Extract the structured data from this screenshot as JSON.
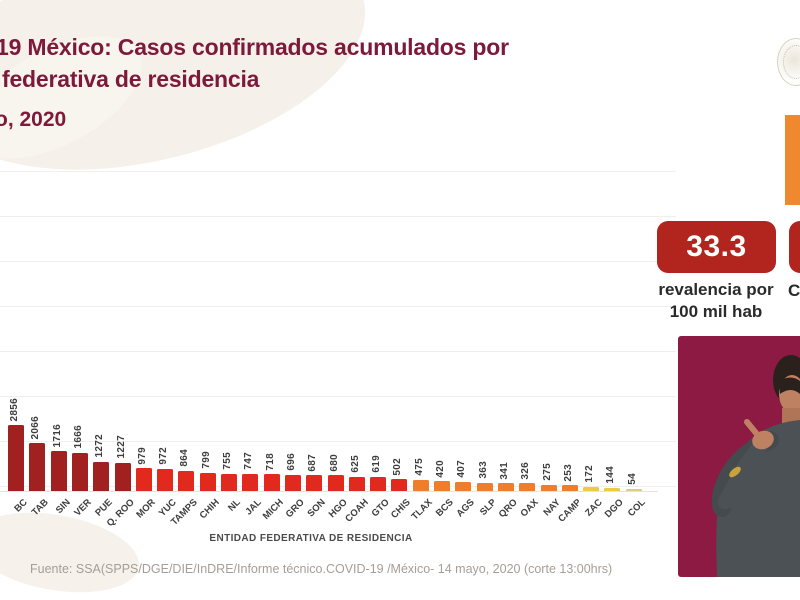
{
  "title": {
    "line1": "19 México: Casos confirmados acumulados por",
    "line2": "federativa de residencia",
    "date": "o, 2020"
  },
  "stats": {
    "prevalence": {
      "value": "33.3",
      "label_line1": "revalencia por",
      "label_line2": "100 mil hab"
    },
    "secondary_partial": {
      "label": "C"
    }
  },
  "chart_data": {
    "type": "bar",
    "title": "Casos confirmados acumulados por entidad federativa de residencia",
    "categories": [
      "BC",
      "TAB",
      "SIN",
      "VER",
      "PUE",
      "Q. ROO",
      "MOR",
      "YUC",
      "TAMPS",
      "CHIH",
      "NL",
      "JAL",
      "MICH",
      "GRO",
      "SON",
      "HGO",
      "COAH",
      "GTO",
      "CHIS",
      "TLAX",
      "BCS",
      "AGS",
      "SLP",
      "QRO",
      "OAX",
      "NAY",
      "CAMP",
      "ZAC",
      "DGO",
      "COL"
    ],
    "values": [
      2856,
      2066,
      1716,
      1666,
      1272,
      1227,
      979,
      972,
      864,
      799,
      755,
      747,
      718,
      696,
      687,
      680,
      625,
      619,
      502,
      475,
      420,
      407,
      363,
      341,
      326,
      275,
      253,
      172,
      144,
      54
    ],
    "bar_colors": [
      "#A02120",
      "#A02120",
      "#A02120",
      "#A02120",
      "#A02120",
      "#A02120",
      "#E2291E",
      "#E2291E",
      "#E2291E",
      "#E2291E",
      "#E2291E",
      "#E2291E",
      "#E2291E",
      "#E2291E",
      "#E2291E",
      "#E2291E",
      "#E2291E",
      "#E2291E",
      "#E2291E",
      "#EE7D2E",
      "#EE7D2E",
      "#EE7D2E",
      "#EE7D2E",
      "#EE7D2E",
      "#EE7D2E",
      "#EE7D2E",
      "#EE7D2E",
      "#EFC93F",
      "#EFC93F",
      "#D8CF79"
    ],
    "xlabel": "ENTIDAD FEDERATIVA DE RESIDENCIA",
    "ylabel": "",
    "ylim_visible": [
      0,
      2900
    ],
    "grid": true,
    "legend": "none",
    "value_labels": "above-bars-vertical"
  },
  "footer": {
    "source": "Fuente: SSA(SPPS/DGE/DIE/InDRE/Informe técnico.COVID-19 /México- 14 mayo, 2020 (corte 13:00hrs)"
  },
  "icons": {
    "seal": "government-seal-icon",
    "interpreter": "sign-language-interpreter"
  },
  "colors": {
    "title_maroon": "#7D1A3B",
    "stat_box_red": "#B2251F",
    "accent_orange": "#F0882F",
    "interpreter_background": "#8C1A42",
    "label_text": "#2A2A2A",
    "source_text": "#A59E96"
  }
}
